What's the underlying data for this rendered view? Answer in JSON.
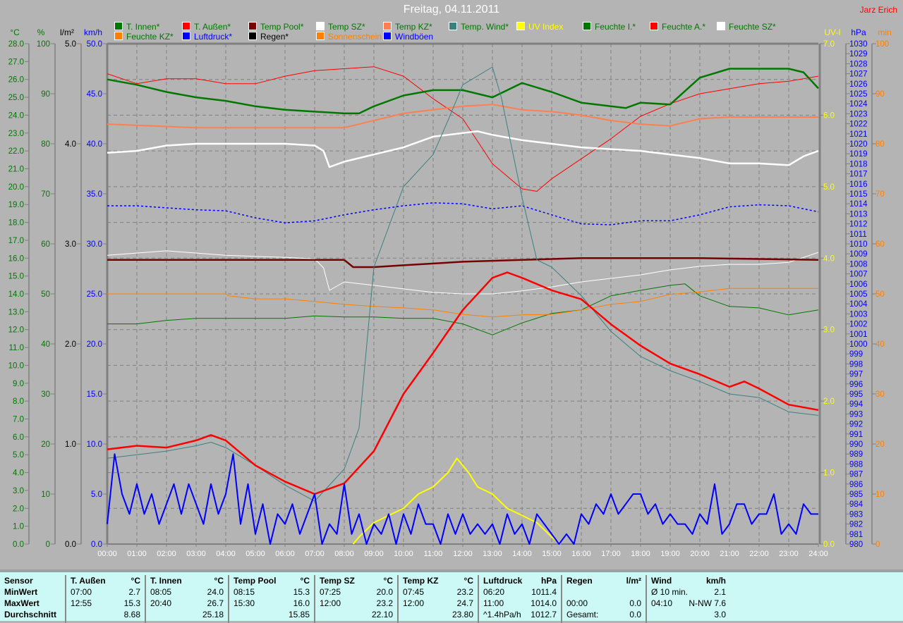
{
  "header": {
    "title": "Freitag, 04.11.2011",
    "author": "Jarz Erich"
  },
  "legend": [
    {
      "label": "T. Innen*",
      "color": "#007800",
      "text_color": "#007800"
    },
    {
      "label": "T. Außen*",
      "color": "#ff0000",
      "text_color": "#007800"
    },
    {
      "label": "Temp Pool*",
      "color": "#780000",
      "text_color": "#007800"
    },
    {
      "label": "Temp SZ*",
      "color": "#ffffff",
      "text_color": "#007800"
    },
    {
      "label": "Temp KZ*",
      "color": "#ff7f50",
      "text_color": "#007800"
    },
    {
      "label": "Temp. Wind*",
      "color": "#3c8080",
      "text_color": "#007800"
    },
    {
      "label": "UV Index",
      "color": "#ffff00",
      "text_color": "#ffff00"
    },
    {
      "label": "Feuchte I.*",
      "color": "#007800",
      "text_color": "#007800"
    },
    {
      "label": "Feuchte A.*",
      "color": "#ff0000",
      "text_color": "#007800"
    },
    {
      "label": "Feuchte SZ*",
      "color": "#ffffff",
      "text_color": "#007800"
    },
    {
      "label": "Feuchte KZ*",
      "color": "#ff8000",
      "text_color": "#007800"
    },
    {
      "label": "Luftdruck*",
      "color": "#0000ff",
      "text_color": "#0000ff"
    },
    {
      "label": "Regen*",
      "color": "#000000",
      "text_color": "#000000"
    },
    {
      "label": "Sonnenschein",
      "color": "#ff8000",
      "text_color": "#ff8000"
    },
    {
      "label": "Windböen",
      "color": "#0000ff",
      "text_color": "#0000ff"
    }
  ],
  "chart_data": {
    "type": "line",
    "title": "Freitag, 04.11.2011",
    "grid": true,
    "x_ticks": [
      "00:00",
      "01:00",
      "02:00",
      "03:00",
      "04:00",
      "05:00",
      "06:00",
      "07:00",
      "08:00",
      "09:00",
      "10:00",
      "11:00",
      "12:00",
      "13:00",
      "14:00",
      "15:00",
      "16:00",
      "17:00",
      "18:00",
      "19:00",
      "20:00",
      "21:00",
      "22:00",
      "23:00",
      "24:00"
    ],
    "xlim": [
      0,
      24
    ],
    "axes": {
      "temp": {
        "label": "°C",
        "min": 0,
        "max": 28,
        "step": 1,
        "decimals": 1,
        "color": "#007800",
        "side": "left"
      },
      "hum": {
        "label": "%",
        "min": 0,
        "max": 100,
        "step": 10,
        "decimals": 0,
        "color": "#007800",
        "side": "left"
      },
      "rain": {
        "label": "l/m²",
        "min": 0,
        "max": 5,
        "step": 1,
        "decimals": 1,
        "color": "#000000",
        "side": "left"
      },
      "wind": {
        "label": "km/h",
        "min": 0,
        "max": 50,
        "step": 5,
        "decimals": 1,
        "color": "#0000ff",
        "side": "left"
      },
      "uv": {
        "label": "UV-I",
        "min": 0,
        "max": 7,
        "step": 1,
        "decimals": 1,
        "color": "#ffff00",
        "side": "right"
      },
      "press": {
        "label": "hPa",
        "min": 980,
        "max": 1030,
        "step": 1,
        "decimals": 0,
        "color": "#0000ff",
        "side": "right"
      },
      "sun": {
        "label": "min",
        "min": 0,
        "max": 100,
        "step": 10,
        "decimals": 0,
        "color": "#ff8000",
        "side": "right"
      }
    },
    "series": [
      {
        "name": "Feuchte A.*",
        "axis": "hum",
        "color": "#ff0000",
        "x": [
          0,
          1,
          2,
          3,
          4,
          5,
          6,
          7,
          8,
          9,
          10,
          11,
          12,
          13,
          14,
          14.5,
          15,
          16,
          17,
          18,
          19,
          20,
          21,
          22,
          23,
          24
        ],
        "y": [
          94,
          92,
          93,
          93,
          92,
          92,
          93.5,
          94.6,
          95,
          95.4,
          93.5,
          89,
          85,
          76,
          71,
          70.5,
          73,
          77,
          81,
          85.5,
          88,
          90,
          91,
          92,
          92.5,
          93.5
        ]
      },
      {
        "name": "Feuchte SZ*",
        "axis": "hum",
        "color": "#ffffff",
        "x": [
          0,
          2,
          4,
          6,
          7,
          7.3,
          7.5,
          8,
          9,
          10,
          11,
          12,
          13,
          14,
          15,
          16,
          17,
          18,
          19,
          20,
          21,
          22,
          23,
          24
        ],
        "y": [
          57.7,
          58.6,
          57.7,
          57.3,
          57,
          55.2,
          50.7,
          52.4,
          51.7,
          51,
          50.3,
          50,
          50,
          50.6,
          51.4,
          52.4,
          53.1,
          53.8,
          54.8,
          55.5,
          55.9,
          55.9,
          56.3,
          58.3
        ]
      },
      {
        "name": "Feuchte I.*",
        "axis": "hum",
        "color": "#007800",
        "x": [
          0,
          1,
          2,
          3,
          4,
          5,
          6,
          7,
          8,
          9,
          10,
          11,
          12,
          13,
          14,
          15,
          16,
          17,
          18,
          19,
          19.5,
          20,
          21,
          22,
          23,
          24
        ],
        "y": [
          44,
          44,
          44.7,
          45.1,
          45.1,
          45.1,
          45.1,
          45.6,
          45.4,
          45.4,
          45.1,
          45.1,
          44,
          41.8,
          44.2,
          46.1,
          46.8,
          49.6,
          50.7,
          51.7,
          52,
          49.6,
          47.5,
          47.2,
          45.8,
          46.8
        ]
      },
      {
        "name": "Feuchte KZ*",
        "axis": "hum",
        "color": "#ff8000",
        "x": [
          0,
          4,
          4.1,
          5,
          6,
          7,
          8,
          9,
          10,
          11,
          12,
          13,
          14,
          15,
          16,
          17,
          18,
          19,
          20,
          21,
          22,
          24
        ],
        "y": [
          50,
          50,
          49.6,
          49,
          49,
          48.5,
          47.9,
          47.5,
          47.2,
          46.8,
          45.9,
          45.4,
          45.8,
          45.9,
          46.8,
          47.9,
          48.5,
          49.9,
          50.4,
          51.1,
          51.1,
          51.1
        ]
      },
      {
        "name": "Temp Pool*",
        "axis": "temp",
        "color": "#780000",
        "x": [
          0,
          7,
          8,
          8.3,
          9,
          10,
          12,
          14,
          16,
          18,
          20,
          24
        ],
        "y": [
          15.9,
          15.9,
          15.9,
          15.5,
          15.5,
          15.6,
          15.8,
          15.9,
          16.0,
          16.0,
          16.0,
          15.9
        ]
      },
      {
        "name": "Luftdruck*",
        "axis": "press",
        "color": "#0000ff",
        "dashed": true,
        "x": [
          0,
          1,
          2,
          3,
          4,
          5,
          6,
          7,
          8,
          9,
          10,
          11,
          12,
          13,
          14,
          15,
          16,
          17,
          18,
          19,
          20,
          21,
          22,
          23,
          24
        ],
        "y": [
          1013.8,
          1013.8,
          1013.6,
          1013.4,
          1013.3,
          1012.6,
          1012.1,
          1012.3,
          1012.9,
          1013.4,
          1013.8,
          1014.1,
          1014.0,
          1013.5,
          1013.8,
          1012.9,
          1012.0,
          1011.9,
          1012.3,
          1012.3,
          1012.9,
          1013.7,
          1013.9,
          1013.8,
          1013.2
        ]
      },
      {
        "name": "Temp KZ*",
        "axis": "temp",
        "color": "#ff7f50",
        "x": [
          0,
          3,
          6,
          8,
          9,
          10,
          11,
          12,
          13,
          14,
          15,
          16,
          17,
          18,
          19,
          20,
          21,
          24
        ],
        "y": [
          23.5,
          23.3,
          23.3,
          23.3,
          23.7,
          24.1,
          24.3,
          24.5,
          24.6,
          24.3,
          24.2,
          24.0,
          23.7,
          23.5,
          23.4,
          23.8,
          23.9,
          23.9
        ]
      },
      {
        "name": "Temp SZ*",
        "axis": "temp",
        "color": "#ffffff",
        "x": [
          0,
          1,
          2,
          3,
          4,
          5,
          6,
          7,
          7.3,
          7.5,
          8,
          9,
          10,
          11,
          12,
          12.5,
          13,
          14,
          15,
          16,
          17,
          18,
          19,
          20,
          21,
          22,
          23,
          23.5,
          24
        ],
        "y": [
          21.9,
          22.0,
          22.3,
          22.4,
          22.4,
          22.4,
          22.4,
          22.3,
          22.0,
          21.1,
          21.4,
          21.8,
          22.2,
          22.8,
          23.0,
          23.1,
          22.9,
          22.6,
          22.4,
          22.2,
          22.1,
          22.0,
          21.8,
          21.6,
          21.3,
          21.3,
          21.2,
          21.7,
          22.0
        ]
      },
      {
        "name": "T. Innen*",
        "axis": "temp",
        "color": "#007800",
        "x": [
          0,
          1,
          2,
          3,
          4,
          5,
          6,
          7,
          8,
          8.5,
          9,
          10,
          11,
          12,
          13,
          14,
          15,
          16,
          17,
          17.5,
          18,
          19,
          20,
          21,
          22,
          23,
          23.5,
          24
        ],
        "y": [
          26.0,
          25.7,
          25.3,
          25.0,
          24.8,
          24.5,
          24.3,
          24.2,
          24.1,
          24.1,
          24.5,
          25.1,
          25.4,
          25.4,
          25.0,
          25.8,
          25.3,
          24.7,
          24.5,
          24.4,
          24.7,
          24.6,
          26.1,
          26.6,
          26.6,
          26.6,
          26.4,
          25.5
        ]
      },
      {
        "name": "Temp. Wind*",
        "axis": "temp",
        "color": "#3c8080",
        "x": [
          0,
          1,
          2,
          3,
          3.5,
          4,
          5,
          6,
          7,
          8,
          8.5,
          9,
          10,
          11,
          11.5,
          12,
          13,
          13.3,
          14,
          14.5,
          15,
          16,
          17,
          18,
          19,
          20,
          21,
          22,
          23,
          24
        ],
        "y": [
          4.8,
          5.0,
          5.2,
          5.5,
          5.7,
          5.4,
          4.4,
          3.3,
          2.4,
          4.2,
          6.5,
          15.5,
          20.0,
          21.8,
          23.7,
          25.7,
          26.7,
          25.0,
          19.4,
          15.9,
          15.5,
          13.9,
          11.9,
          10.5,
          9.7,
          9.1,
          8.4,
          8.2,
          7.4,
          7.2
        ]
      },
      {
        "name": "T. Außen*",
        "axis": "temp",
        "color": "#ff0000",
        "x": [
          0,
          1,
          2,
          3,
          3.5,
          4,
          5,
          6,
          7,
          8,
          9,
          10,
          11,
          12,
          13,
          13.5,
          14,
          15,
          16,
          17,
          18,
          19,
          20,
          21,
          21.5,
          22,
          23,
          24
        ],
        "y": [
          5.3,
          5.5,
          5.4,
          5.8,
          6.1,
          5.8,
          4.4,
          3.5,
          2.8,
          3.4,
          5.2,
          8.4,
          10.7,
          13.1,
          14.9,
          15.2,
          14.9,
          14.2,
          13.7,
          12.3,
          11.1,
          10.1,
          9.5,
          8.8,
          9.1,
          8.7,
          7.8,
          7.5
        ]
      },
      {
        "name": "UV Index",
        "axis": "uv",
        "color": "#ffff00",
        "x": [
          8.3,
          8.5,
          9,
          9.5,
          10,
          10.5,
          11,
          11.5,
          11.8,
          12.2,
          12.5,
          13,
          13.5,
          14,
          14.5,
          15,
          15.3
        ],
        "y": [
          0,
          0.1,
          0.3,
          0.4,
          0.5,
          0.7,
          0.8,
          1.0,
          1.2,
          1.0,
          0.8,
          0.7,
          0.5,
          0.4,
          0.3,
          0.1,
          0
        ]
      },
      {
        "name": "Windböen",
        "axis": "wind",
        "color": "#0000ff",
        "x": [
          0,
          0.25,
          0.5,
          0.75,
          1,
          1.25,
          1.5,
          1.75,
          2,
          2.25,
          2.5,
          2.75,
          3,
          3.25,
          3.5,
          3.75,
          4,
          4.25,
          4.5,
          4.75,
          5,
          5.25,
          5.5,
          5.75,
          6,
          6.25,
          6.5,
          6.75,
          7,
          7.25,
          7.5,
          7.75,
          8,
          8.25,
          8.5,
          8.75,
          9,
          9.25,
          9.5,
          9.75,
          10,
          10.25,
          10.5,
          10.75,
          11,
          11.25,
          11.5,
          11.75,
          12,
          12.25,
          12.5,
          12.75,
          13,
          13.25,
          13.5,
          13.75,
          14,
          14.25,
          14.5,
          14.75,
          15,
          15.25,
          15.5,
          15.75,
          16,
          16.25,
          16.5,
          16.75,
          17,
          17.25,
          17.5,
          17.75,
          18,
          18.25,
          18.5,
          18.75,
          19,
          19.25,
          19.5,
          19.75,
          20,
          20.25,
          20.5,
          20.75,
          21,
          21.25,
          21.5,
          21.75,
          22,
          22.25,
          22.5,
          22.75,
          23,
          23.25,
          23.5,
          23.75,
          24
        ],
        "y": [
          2,
          9,
          5,
          3,
          6,
          3,
          5,
          2,
          4,
          6,
          3,
          6,
          4,
          2,
          6,
          3,
          5,
          9,
          2,
          6,
          1,
          4,
          0,
          3,
          2,
          4,
          1,
          3,
          5,
          0,
          2,
          1,
          6,
          1,
          3,
          0,
          2,
          1,
          3,
          0,
          3,
          1,
          4,
          2,
          2,
          0,
          3,
          1,
          3,
          1,
          2,
          1,
          2,
          0,
          3,
          1,
          2,
          0,
          3,
          2,
          1,
          0,
          1,
          0,
          3,
          2,
          4,
          3,
          5,
          3,
          4,
          5,
          5,
          3,
          4,
          2,
          3,
          2,
          2,
          1,
          3,
          2,
          6,
          1,
          2,
          4,
          4,
          2,
          3,
          3,
          5,
          1,
          2,
          1,
          4,
          3,
          3
        ]
      }
    ]
  },
  "stats": {
    "row_labels": [
      "Sensor",
      "MinWert",
      "MaxWert",
      "Durchschnitt"
    ],
    "columns": [
      {
        "title": "T. Außen",
        "unit": "°C",
        "rows": [
          [
            "07:00",
            "2.7"
          ],
          [
            "12:55",
            "15.3"
          ],
          [
            "",
            "8.68"
          ]
        ]
      },
      {
        "title": "T. Innen",
        "unit": "°C",
        "rows": [
          [
            "08:05",
            "24.0"
          ],
          [
            "20:40",
            "26.7"
          ],
          [
            "",
            "25.18"
          ]
        ]
      },
      {
        "title": "Temp Pool",
        "unit": "°C",
        "rows": [
          [
            "08:15",
            "15.3"
          ],
          [
            "15:30",
            "16.0"
          ],
          [
            "",
            "15.85"
          ]
        ]
      },
      {
        "title": "Temp SZ",
        "unit": "°C",
        "rows": [
          [
            "07:25",
            "20.0"
          ],
          [
            "12:00",
            "23.2"
          ],
          [
            "",
            "22.10"
          ]
        ]
      },
      {
        "title": "Temp KZ",
        "unit": "°C",
        "rows": [
          [
            "07:45",
            "23.2"
          ],
          [
            "12:00",
            "24.7"
          ],
          [
            "",
            "23.80"
          ]
        ]
      },
      {
        "title": "Luftdruck",
        "unit": "hPa",
        "rows": [
          [
            "06:20",
            "1011.4"
          ],
          [
            "11:00",
            "1014.0"
          ],
          [
            "^1.4hPa/h",
            "1012.7"
          ]
        ]
      },
      {
        "title": "Regen",
        "unit": "l/m²",
        "rows": [
          [
            "",
            ""
          ],
          [
            "00:00",
            "0.0"
          ],
          [
            "Gesamt:",
            "0.0"
          ]
        ]
      },
      {
        "title": "Wind",
        "unit": "km/h",
        "rows": [
          [
            "Ø 10 min.",
            "2.1"
          ],
          [
            "04:10",
            "N-NW 7.6"
          ],
          [
            "",
            "3.0"
          ]
        ]
      }
    ]
  }
}
